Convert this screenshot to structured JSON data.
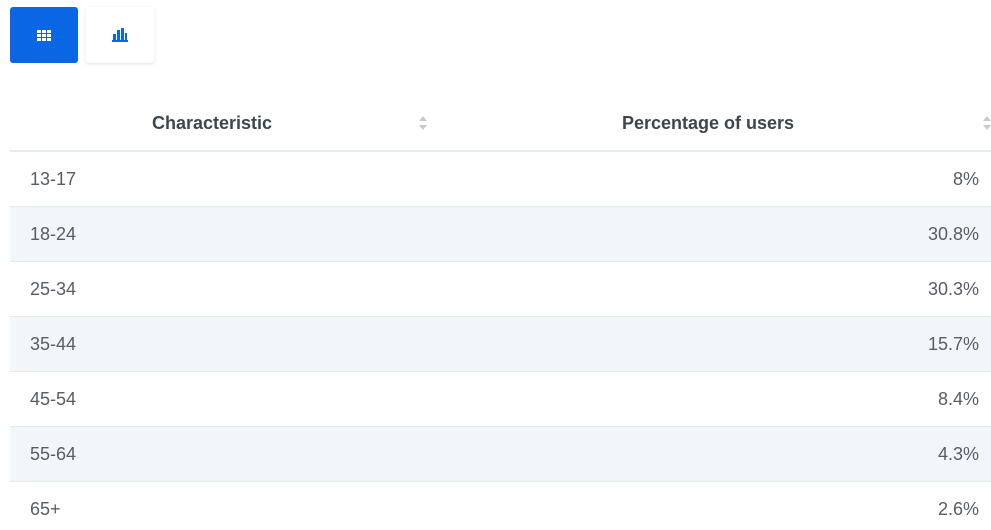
{
  "toolbar": {
    "table_view_icon": "table-grid-icon",
    "chart_view_icon": "bar-chart-icon",
    "active_color": "#0a66e4"
  },
  "table": {
    "headers": [
      "Characteristic",
      "Percentage of users"
    ],
    "rows": [
      {
        "characteristic": "13-17",
        "percentage": "8%"
      },
      {
        "characteristic": "18-24",
        "percentage": "30.8%"
      },
      {
        "characteristic": "25-34",
        "percentage": "30.3%"
      },
      {
        "characteristic": "35-44",
        "percentage": "15.7%"
      },
      {
        "characteristic": "45-54",
        "percentage": "8.4%"
      },
      {
        "characteristic": "55-64",
        "percentage": "4.3%"
      },
      {
        "characteristic": "65+",
        "percentage": "2.6%"
      }
    ]
  }
}
